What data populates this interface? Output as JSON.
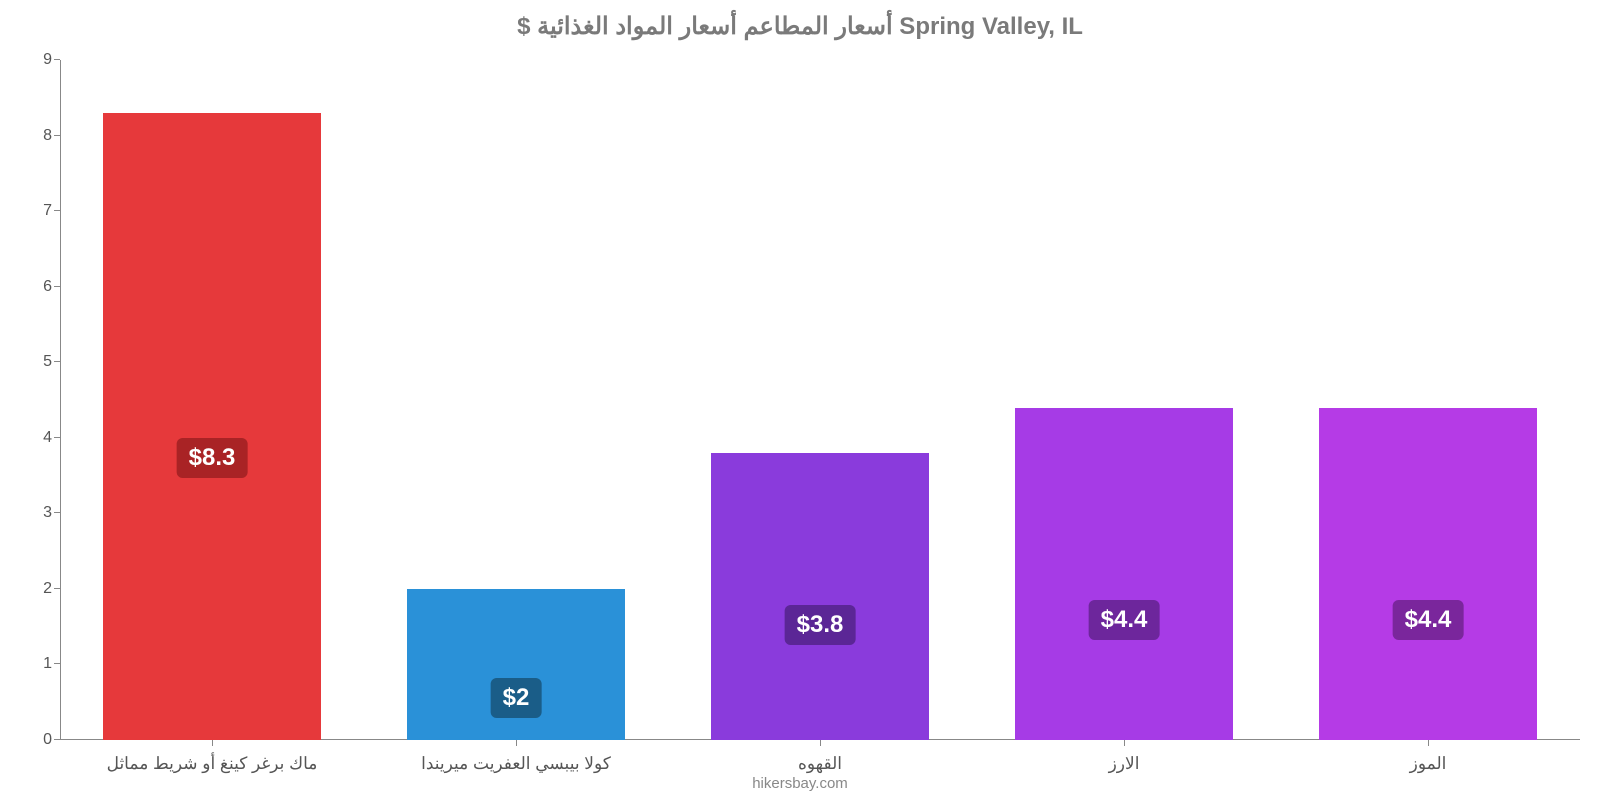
{
  "chart": {
    "type": "bar",
    "title": "$ أسعار المطاعم أسعار المواد الغذائية Spring Valley, IL",
    "title_color": "#7a7a7a",
    "title_fontsize": 24,
    "credit": "hikersbay.com",
    "credit_color": "#888888",
    "background_color": "#ffffff",
    "axis_color": "#888888",
    "label_color": "#555555",
    "label_fontsize": 16,
    "cat_fontsize": 17,
    "ylim": [
      0,
      9
    ],
    "ytick_step": 1,
    "bar_width_ratio": 0.72,
    "bar_label_fontsize": 24,
    "categories": [
      "ماك برغر كينغ أو شريط مماثل",
      "كولا بيبسي العفريت ميريندا",
      "القهوه",
      "الارز",
      "الموز"
    ],
    "values": [
      8.3,
      2,
      3.8,
      4.4,
      4.4
    ],
    "value_labels": [
      "$8.3",
      "$2",
      "$3.8",
      "$4.4",
      "$4.4"
    ],
    "bar_colors": [
      "#e6393b",
      "#2a91d8",
      "#8a3bdc",
      "#a63be6",
      "#b53be6"
    ],
    "badge_colors": [
      "#a92325",
      "#1a5d88",
      "#5b2696",
      "#6d269c",
      "#7a269c"
    ],
    "label_y_ratio": [
      0.55,
      0.72,
      0.6,
      0.64,
      0.64
    ]
  }
}
